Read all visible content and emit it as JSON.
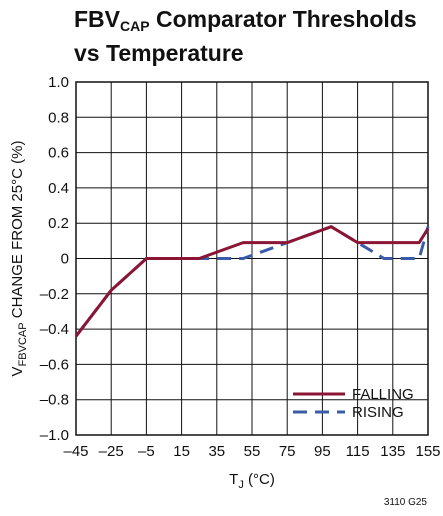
{
  "chart_data": {
    "type": "line",
    "title_main": "FBV",
    "title_sub": "CAP",
    "title_rest": " Comparator Thresholds",
    "title_line2": "vs Temperature",
    "xlabel": "T",
    "xlabel_sub": "J",
    "xlabel_unit": " (°C)",
    "ylabel": "V",
    "ylabel_sub": "FBVCAP",
    "ylabel_rest": " CHANGE FROM 25°C (%)",
    "xlim": [
      -45,
      155
    ],
    "ylim": [
      -1.0,
      1.0
    ],
    "x_ticks": [
      -45,
      -25,
      -5,
      15,
      35,
      55,
      75,
      95,
      115,
      135,
      155
    ],
    "x_tick_labels": [
      "–45",
      "–25",
      "–5",
      "15",
      "35",
      "55",
      "75",
      "95",
      "115",
      "135",
      "155"
    ],
    "y_ticks": [
      -1.0,
      -0.8,
      -0.6,
      -0.4,
      -0.2,
      0,
      0.2,
      0.4,
      0.6,
      0.8,
      1.0
    ],
    "y_tick_labels": [
      "–1.0",
      "–0.8",
      "–0.6",
      "–0.4",
      "–0.2",
      "0",
      "0.2",
      "0.4",
      "0.6",
      "0.8",
      "1.0"
    ],
    "grid": true,
    "legend_position": "bottom-right",
    "series": [
      {
        "name": "FALLING",
        "style": "solid",
        "color": "#8b1535",
        "x": [
          -45,
          -25,
          -5,
          25,
          50,
          75,
          100,
          115,
          150,
          155
        ],
        "y": [
          -0.44,
          -0.18,
          0.0,
          0.0,
          0.09,
          0.09,
          0.18,
          0.09,
          0.09,
          0.17
        ]
      },
      {
        "name": "RISING",
        "style": "dashed",
        "color": "#3a5ca8",
        "x": [
          -45,
          -25,
          -5,
          25,
          50,
          75,
          100,
          115,
          130,
          150,
          155
        ],
        "y": [
          -0.44,
          -0.18,
          0.0,
          0.0,
          0.0,
          0.09,
          0.18,
          0.09,
          0.0,
          0.0,
          0.18
        ]
      }
    ],
    "figure_id": "3110 G25"
  }
}
